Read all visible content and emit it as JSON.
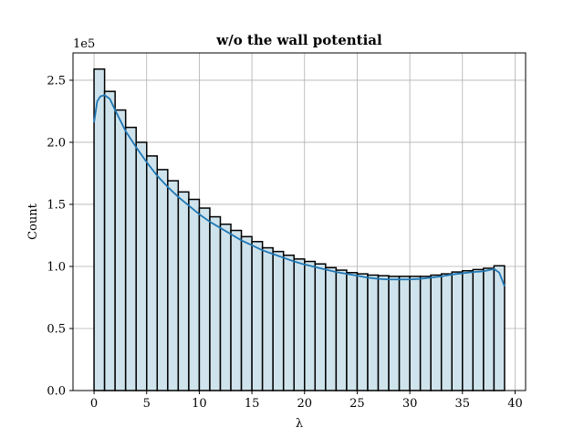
{
  "chart_data": {
    "type": "bar",
    "title": "w/o the wall potential",
    "xlabel": "λ",
    "ylabel": "Count",
    "y_offset_label": "1e5",
    "xlim": [
      -2,
      41
    ],
    "ylim": [
      0,
      272000
    ],
    "grid": true,
    "x_ticks": [
      0,
      5,
      10,
      15,
      20,
      25,
      30,
      35,
      40
    ],
    "x_tick_labels": [
      "0",
      "5",
      "10",
      "15",
      "20",
      "25",
      "30",
      "35",
      "40"
    ],
    "y_ticks": [
      0,
      50000,
      100000,
      150000,
      200000,
      250000
    ],
    "y_tick_labels": [
      "0.0",
      "0.5",
      "1.0",
      "1.5",
      "2.0",
      "2.5"
    ],
    "bin_start": 0,
    "bin_width": 1,
    "values": [
      259000,
      241000,
      226000,
      212000,
      200000,
      189000,
      178000,
      169000,
      160000,
      154000,
      147000,
      140000,
      134000,
      129000,
      124000,
      120000,
      115000,
      112000,
      109000,
      106000,
      104000,
      102000,
      99000,
      97000,
      95000,
      94000,
      93000,
      92500,
      92000,
      92000,
      92000,
      92000,
      93000,
      94000,
      95500,
      96500,
      97500,
      98500,
      100500
    ],
    "kde_x": [
      0,
      0.3,
      0.6,
      1.0,
      1.5,
      2,
      3,
      4,
      5,
      6,
      7,
      8,
      9,
      10,
      11,
      12,
      13,
      14,
      15,
      16,
      17,
      18,
      19,
      20,
      21,
      22,
      23,
      24,
      25,
      26,
      27,
      28,
      29,
      30,
      31,
      32,
      33,
      34,
      35,
      36,
      37,
      37.5,
      38,
      38.5,
      39
    ],
    "kde_y": [
      216000,
      233000,
      237000,
      238000,
      235000,
      226000,
      209000,
      196000,
      184000,
      173000,
      164000,
      156000,
      149000,
      142000,
      136000,
      131000,
      126000,
      121000,
      117000,
      113000,
      110000,
      107000,
      104000,
      101500,
      99500,
      97500,
      95500,
      94000,
      92500,
      91000,
      90000,
      89500,
      89500,
      89500,
      90000,
      91000,
      92000,
      93500,
      94500,
      95500,
      96000,
      97000,
      98000,
      95000,
      84000
    ],
    "bar_color": "#cfe3ec",
    "edge_color": "#000000",
    "kde_color": "#1f77b4"
  }
}
